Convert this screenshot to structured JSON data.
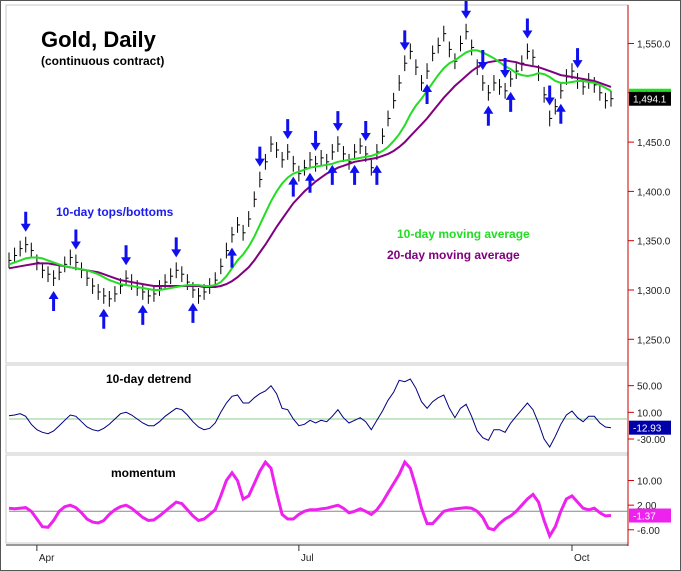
{
  "chart_data": {
    "type": "line",
    "title": "Gold, Daily",
    "subtitle": "(continuous contract)",
    "x_ticks": [
      "Apr",
      "Jul",
      "Oct"
    ],
    "price_panel": {
      "ylim": [
        1230,
        1585
      ],
      "y_ticks": [
        "1,550.0",
        "1,500.0",
        "1,450.0",
        "1,400.0",
        "1,350.0",
        "1,300.0",
        "1,250.0"
      ],
      "y_tick_values": [
        1550,
        1500,
        1450,
        1400,
        1350,
        1300,
        1250
      ],
      "last_value": "1,494.1",
      "ma10_label": "10-day moving average",
      "ma20_label": "20-day moving average",
      "turns_label": "10-day tops/bottoms",
      "colors": {
        "ma10": "#22dd22",
        "ma20": "#800080",
        "arrow": "#1010ee",
        "bars": "#000000"
      },
      "closes": [
        1330,
        1335,
        1342,
        1346,
        1340,
        1328,
        1320,
        1316,
        1312,
        1318,
        1326,
        1333,
        1328,
        1320,
        1312,
        1304,
        1298,
        1294,
        1291,
        1296,
        1304,
        1312,
        1308,
        1302,
        1298,
        1294,
        1296,
        1302,
        1308,
        1314,
        1320,
        1316,
        1308,
        1300,
        1294,
        1298,
        1304,
        1310,
        1324,
        1340,
        1356,
        1366,
        1358,
        1372,
        1392,
        1412,
        1430,
        1448,
        1442,
        1432,
        1440,
        1428,
        1418,
        1424,
        1432,
        1428,
        1434,
        1430,
        1440,
        1448,
        1438,
        1430,
        1440,
        1446,
        1438,
        1424,
        1440,
        1456,
        1474,
        1492,
        1510,
        1530,
        1542,
        1526,
        1510,
        1522,
        1540,
        1548,
        1560,
        1544,
        1532,
        1550,
        1562,
        1546,
        1526,
        1510,
        1500,
        1510,
        1506,
        1502,
        1514,
        1522,
        1530,
        1542,
        1536,
        1520,
        1498,
        1474,
        1486,
        1502,
        1516,
        1522,
        1512,
        1506,
        1512,
        1508,
        1500,
        1492,
        1494
      ],
      "highs": [
        1338,
        1343,
        1350,
        1354,
        1348,
        1336,
        1328,
        1324,
        1320,
        1326,
        1334,
        1341,
        1336,
        1328,
        1320,
        1312,
        1306,
        1302,
        1299,
        1304,
        1312,
        1320,
        1316,
        1310,
        1306,
        1302,
        1304,
        1310,
        1316,
        1322,
        1328,
        1324,
        1316,
        1308,
        1302,
        1306,
        1312,
        1318,
        1332,
        1348,
        1364,
        1374,
        1366,
        1380,
        1400,
        1420,
        1438,
        1456,
        1450,
        1440,
        1448,
        1436,
        1426,
        1432,
        1440,
        1436,
        1442,
        1438,
        1448,
        1456,
        1446,
        1438,
        1448,
        1454,
        1446,
        1432,
        1448,
        1464,
        1482,
        1500,
        1518,
        1538,
        1550,
        1534,
        1518,
        1530,
        1548,
        1556,
        1568,
        1552,
        1540,
        1558,
        1570,
        1554,
        1534,
        1518,
        1508,
        1518,
        1514,
        1510,
        1522,
        1530,
        1538,
        1550,
        1544,
        1528,
        1506,
        1482,
        1494,
        1510,
        1524,
        1530,
        1520,
        1514,
        1520,
        1516,
        1508,
        1500,
        1502
      ],
      "lows": [
        1322,
        1327,
        1334,
        1338,
        1332,
        1320,
        1312,
        1308,
        1304,
        1310,
        1318,
        1325,
        1320,
        1312,
        1304,
        1296,
        1290,
        1286,
        1283,
        1288,
        1296,
        1304,
        1300,
        1294,
        1290,
        1286,
        1288,
        1294,
        1300,
        1306,
        1312,
        1308,
        1300,
        1292,
        1286,
        1290,
        1296,
        1302,
        1316,
        1332,
        1348,
        1358,
        1350,
        1364,
        1384,
        1404,
        1422,
        1440,
        1434,
        1424,
        1432,
        1420,
        1410,
        1416,
        1424,
        1420,
        1426,
        1422,
        1432,
        1440,
        1430,
        1422,
        1432,
        1438,
        1430,
        1416,
        1432,
        1448,
        1466,
        1484,
        1502,
        1522,
        1534,
        1518,
        1502,
        1514,
        1532,
        1540,
        1552,
        1536,
        1524,
        1542,
        1554,
        1538,
        1518,
        1502,
        1492,
        1502,
        1498,
        1494,
        1506,
        1514,
        1522,
        1534,
        1528,
        1512,
        1490,
        1466,
        1478,
        1494,
        1508,
        1514,
        1504,
        1498,
        1504,
        1500,
        1492,
        1484,
        1486
      ],
      "ma10": [
        1326,
        1328,
        1330,
        1332,
        1333,
        1333,
        1332,
        1330,
        1328,
        1326,
        1324,
        1323,
        1322,
        1321,
        1320,
        1318,
        1316,
        1313,
        1310,
        1308,
        1306,
        1305,
        1304,
        1303,
        1302,
        1301,
        1300,
        1300,
        1301,
        1302,
        1303,
        1304,
        1305,
        1305,
        1305,
        1304,
        1304,
        1305,
        1308,
        1314,
        1322,
        1330,
        1336,
        1344,
        1354,
        1366,
        1378,
        1390,
        1400,
        1408,
        1414,
        1418,
        1420,
        1422,
        1424,
        1425,
        1426,
        1427,
        1428,
        1430,
        1431,
        1432,
        1433,
        1434,
        1435,
        1436,
        1438,
        1441,
        1445,
        1451,
        1458,
        1467,
        1478,
        1487,
        1494,
        1502,
        1510,
        1518,
        1525,
        1530,
        1533,
        1537,
        1541,
        1543,
        1543,
        1541,
        1538,
        1535,
        1531,
        1527,
        1524,
        1520,
        1518,
        1517,
        1518,
        1520,
        1519,
        1516,
        1512,
        1510,
        1510,
        1511,
        1512,
        1512,
        1511,
        1510,
        1508,
        1505,
        1502
      ],
      "ma20": [
        1322,
        1323,
        1324,
        1325,
        1326,
        1327,
        1327,
        1327,
        1326,
        1325,
        1324,
        1323,
        1322,
        1321,
        1320,
        1319,
        1318,
        1316,
        1314,
        1312,
        1310,
        1309,
        1308,
        1307,
        1306,
        1305,
        1304,
        1304,
        1304,
        1304,
        1304,
        1304,
        1304,
        1304,
        1304,
        1303,
        1303,
        1303,
        1304,
        1306,
        1309,
        1313,
        1318,
        1323,
        1330,
        1338,
        1346,
        1355,
        1364,
        1372,
        1380,
        1388,
        1394,
        1400,
        1405,
        1410,
        1414,
        1418,
        1421,
        1424,
        1426,
        1428,
        1430,
        1431,
        1432,
        1433,
        1434,
        1436,
        1438,
        1441,
        1445,
        1450,
        1456,
        1462,
        1468,
        1474,
        1481,
        1488,
        1495,
        1501,
        1507,
        1512,
        1517,
        1522,
        1526,
        1529,
        1531,
        1532,
        1533,
        1533,
        1532,
        1531,
        1529,
        1528,
        1527,
        1526,
        1524,
        1522,
        1520,
        1518,
        1517,
        1516,
        1515,
        1514,
        1513,
        1512,
        1510,
        1508,
        1506
      ],
      "down_arrows": [
        3,
        12,
        21,
        30,
        45,
        50,
        55,
        59,
        64,
        71,
        82,
        85,
        89,
        93,
        97,
        102
      ],
      "up_arrows": [
        8,
        17,
        24,
        33,
        40,
        51,
        54,
        58,
        62,
        66,
        75,
        86,
        90,
        99
      ]
    },
    "detrend_panel": {
      "label": "10-day detrend",
      "ylim": [
        -45,
        75
      ],
      "y_ticks": [
        "50.00",
        "10.00",
        "-30.00"
      ],
      "y_tick_values": [
        50,
        10,
        -30
      ],
      "baseline": 0,
      "last_value": "-12.93",
      "colors": {
        "line": "#000080",
        "baseline": "#88cc88",
        "marker": "#0000aa"
      },
      "values": [
        5,
        6,
        8,
        4,
        -8,
        -16,
        -20,
        -22,
        -18,
        -10,
        -2,
        6,
        4,
        -4,
        -12,
        -16,
        -18,
        -14,
        -8,
        0,
        8,
        10,
        6,
        0,
        -6,
        -10,
        -10,
        -4,
        4,
        10,
        16,
        14,
        6,
        -4,
        -12,
        -16,
        -14,
        -6,
        10,
        24,
        34,
        36,
        24,
        24,
        32,
        38,
        42,
        50,
        38,
        16,
        14,
        0,
        -10,
        -8,
        -2,
        -6,
        -2,
        -4,
        4,
        14,
        2,
        -6,
        -2,
        2,
        -4,
        -16,
        -2,
        12,
        28,
        40,
        58,
        56,
        60,
        46,
        26,
        16,
        26,
        32,
        36,
        16,
        2,
        16,
        22,
        4,
        -18,
        -28,
        -32,
        -16,
        -16,
        -20,
        -6,
        4,
        14,
        24,
        14,
        -6,
        -30,
        -42,
        -26,
        -8,
        6,
        12,
        2,
        -4,
        4,
        4,
        -6,
        -12,
        -13
      ]
    },
    "momentum_panel": {
      "label": "momentum",
      "ylim": [
        -9,
        17
      ],
      "y_ticks": [
        "10.00",
        "2.00",
        "-6.00"
      ],
      "y_tick_values": [
        10,
        2,
        -6
      ],
      "baseline": 0,
      "last_value": "-1.37",
      "colors": {
        "line": "#ee22ee",
        "baseline": "#888888",
        "marker": "#ee22ee"
      },
      "values": [
        1,
        0.8,
        1,
        1.2,
        0,
        -2.5,
        -5,
        -5.2,
        -3,
        0,
        1.5,
        2,
        1.2,
        -0.5,
        -2.5,
        -3.5,
        -3.8,
        -3,
        -1,
        0.5,
        1.5,
        2,
        1,
        -0.5,
        -2,
        -3,
        -2.8,
        -1.5,
        0,
        1.5,
        3,
        2.5,
        0.5,
        -1.5,
        -3,
        -2.5,
        -1,
        0.5,
        5,
        10,
        12.5,
        10,
        4,
        5,
        9,
        13,
        16,
        14,
        6,
        -1,
        -2.5,
        -2.5,
        -1,
        0,
        0.5,
        0.5,
        0.8,
        1,
        1.5,
        2,
        1,
        -0.5,
        0,
        0.8,
        0,
        -1,
        0.5,
        3,
        6,
        9,
        12,
        16,
        14,
        8,
        1,
        -4,
        -4,
        -2,
        0,
        0.5,
        0.8,
        1,
        1.2,
        1,
        0,
        -2,
        -5.5,
        -6,
        -4,
        -2.5,
        -1.5,
        0,
        2,
        4,
        5.5,
        3,
        -3,
        -8,
        -5,
        0,
        4,
        5,
        3,
        1,
        0.5,
        1,
        -0.5,
        -1.5,
        -1.37
      ]
    }
  }
}
